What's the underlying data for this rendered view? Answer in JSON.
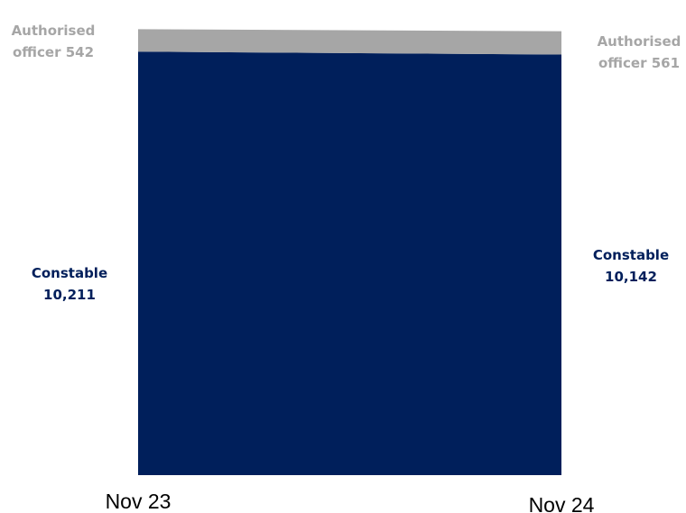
{
  "chart_data": {
    "type": "area",
    "stacked": true,
    "categories": [
      "Nov 23",
      "Nov 24"
    ],
    "series": [
      {
        "name": "Constable",
        "values": [
          10211,
          10142
        ],
        "value_labels": [
          "10,211",
          "10,142"
        ],
        "color": "#001F5B"
      },
      {
        "name": "Authorised officer",
        "values": [
          542,
          561
        ],
        "value_labels": [
          "542",
          "561"
        ],
        "color": "#A6A6A6"
      }
    ],
    "y_axis_visible": false,
    "grid": false,
    "legend": "none",
    "label_colors": {
      "Constable": "#001F5B",
      "Authorised officer": "#A6A6A6"
    }
  }
}
